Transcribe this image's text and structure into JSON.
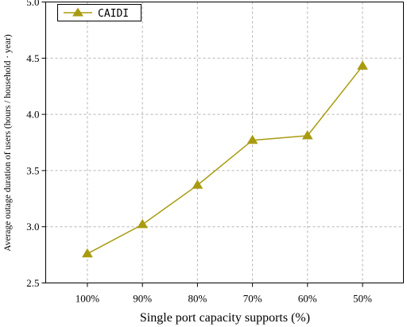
{
  "chart_data": {
    "type": "line",
    "categories": [
      "100%",
      "90%",
      "80%",
      "70%",
      "60%",
      "50%"
    ],
    "series": [
      {
        "name": "CAIDI",
        "values": [
          2.76,
          3.02,
          3.37,
          3.77,
          3.81,
          4.43
        ],
        "color": "#A89B10",
        "marker": "triangle-up"
      }
    ],
    "xlabel": "Single port capacity supports (%)",
    "ylabel": "Average outage duration of users (hours / household · year)",
    "ylim": [
      2.5,
      5.0
    ],
    "yticks": [
      "2.5",
      "3.0",
      "3.5",
      "4.0",
      "4.5",
      "5.0"
    ],
    "grid": true,
    "grid_color": "#b4b4b4",
    "legend_position": "top-left"
  }
}
